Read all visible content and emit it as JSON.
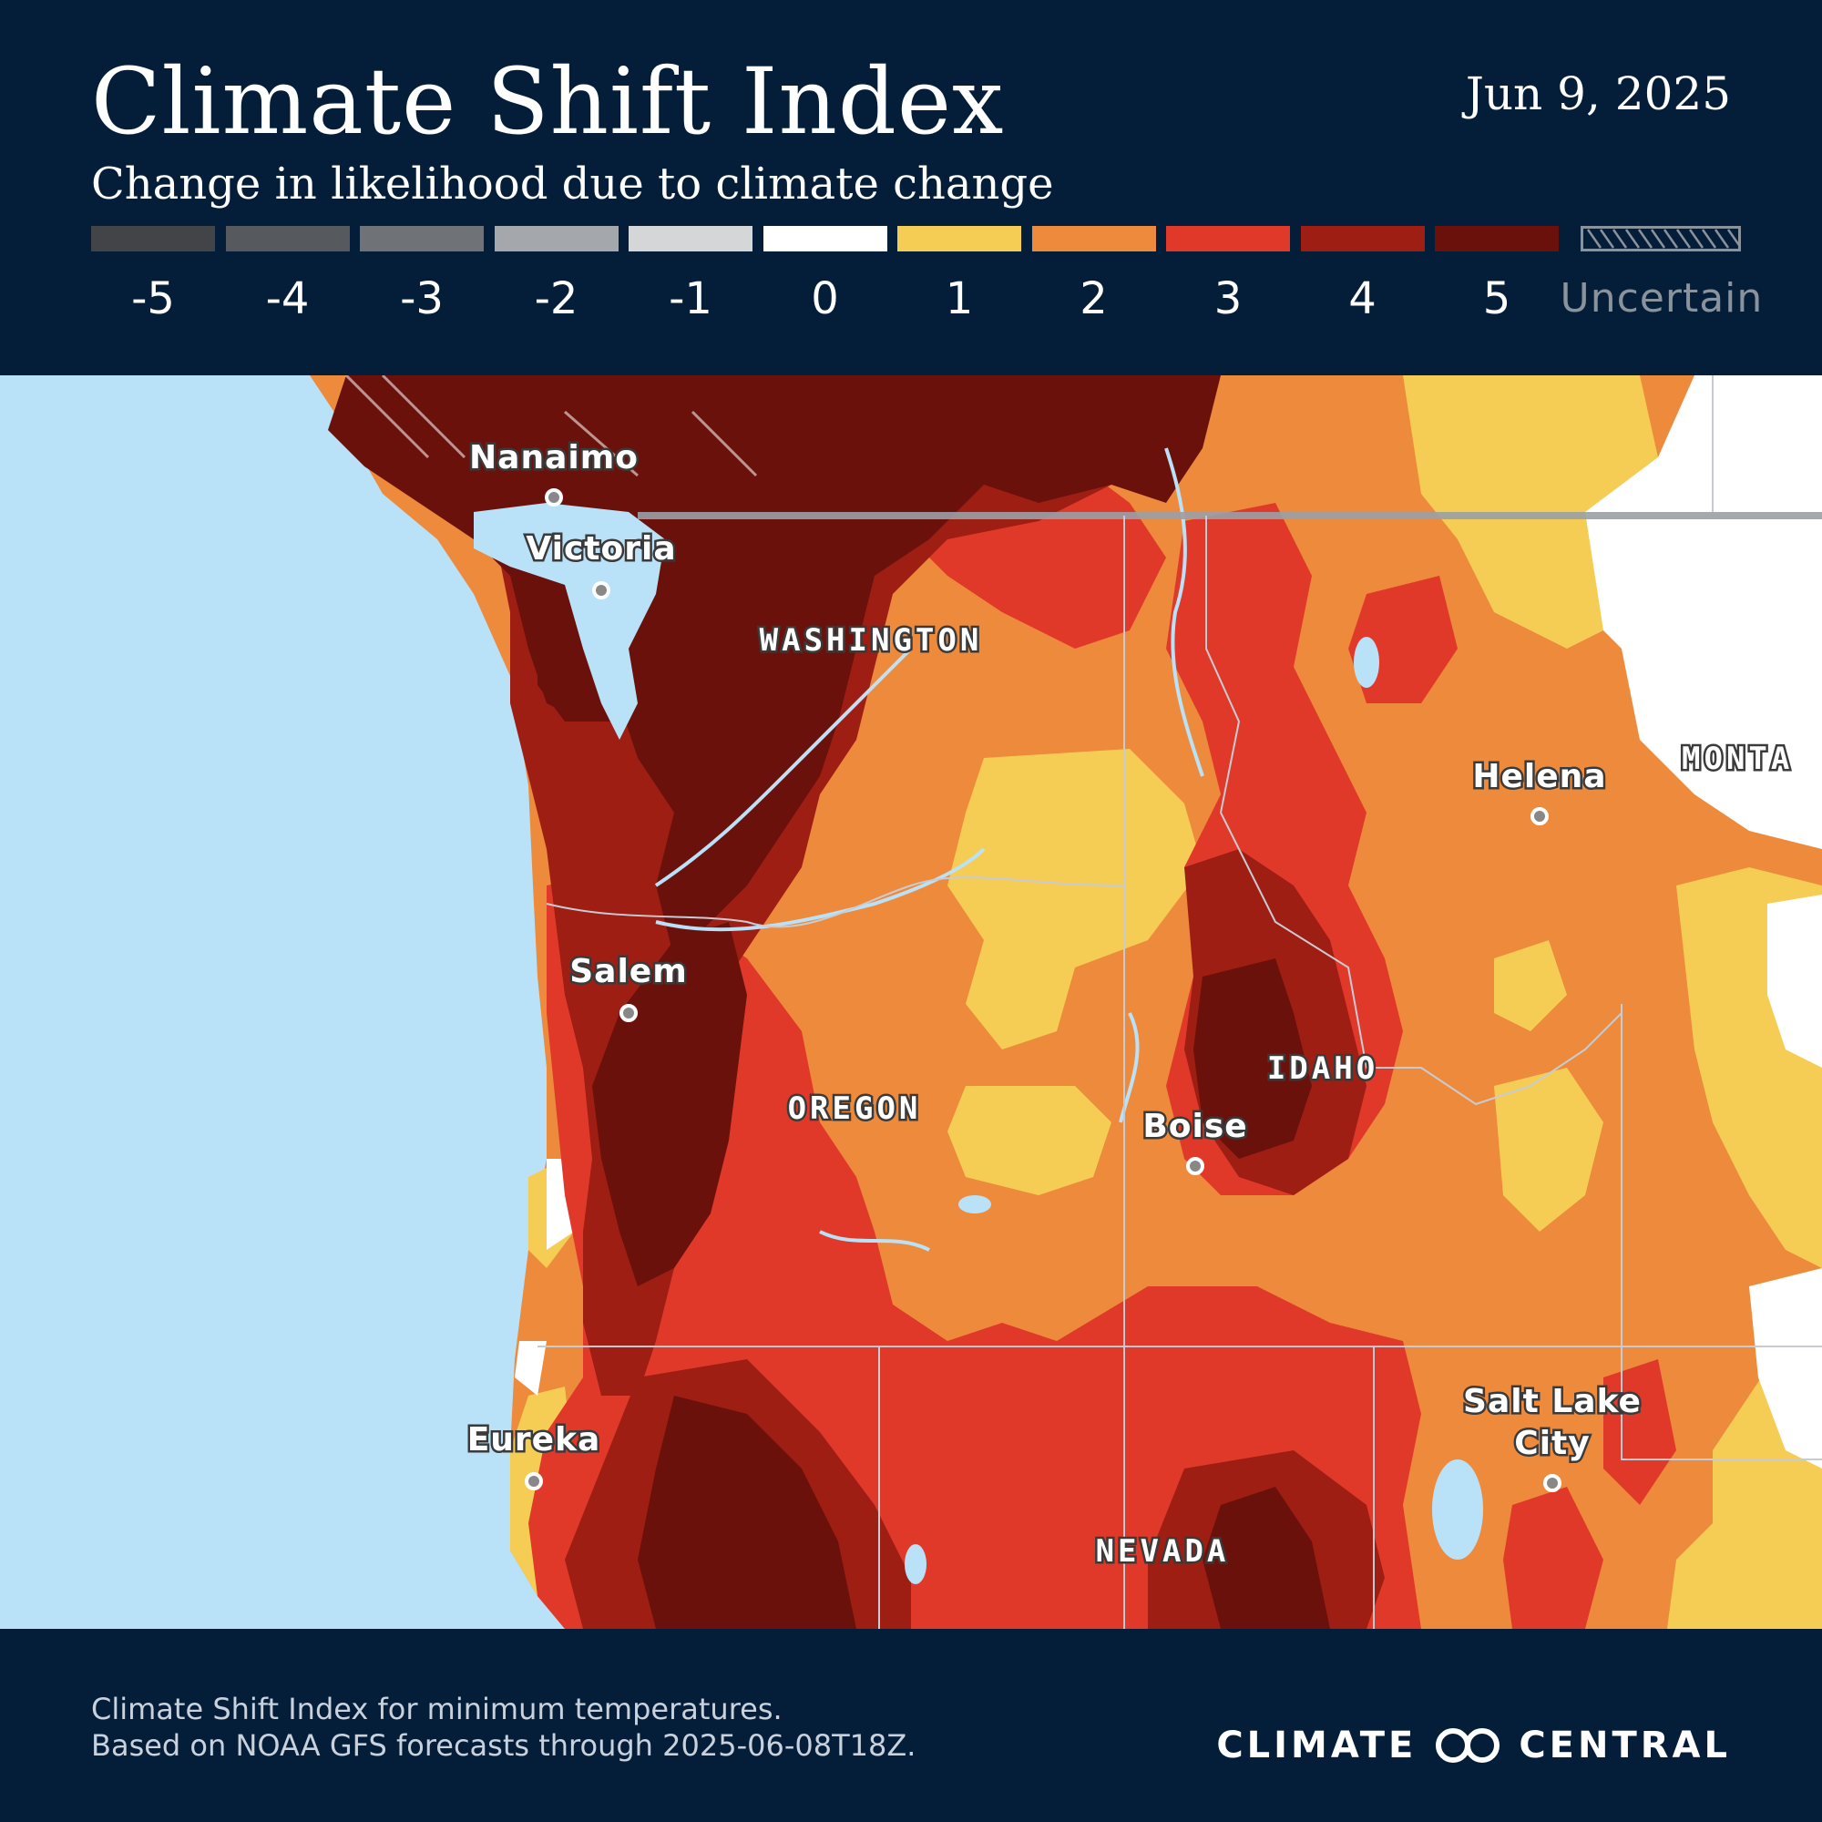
{
  "header": {
    "title": "Climate Shift Index",
    "subtitle": "Change in likelihood due to climate change",
    "date": "Jun 9, 2025"
  },
  "legend": {
    "items": [
      {
        "label": "-5",
        "color": "#424447"
      },
      {
        "label": "-4",
        "color": "#56595d"
      },
      {
        "label": "-3",
        "color": "#6f7378"
      },
      {
        "label": "-2",
        "color": "#a4a8ad"
      },
      {
        "label": "-1",
        "color": "#d4d6d8"
      },
      {
        "label": "0",
        "color": "#ffffff"
      },
      {
        "label": "1",
        "color": "#f5cd55"
      },
      {
        "label": "2",
        "color": "#ee8a3c"
      },
      {
        "label": "3",
        "color": "#e0392a"
      },
      {
        "label": "4",
        "color": "#9e1e14"
      },
      {
        "label": "5",
        "color": "#6b110b"
      }
    ],
    "uncertain_label": "Uncertain"
  },
  "map": {
    "cities": [
      "Nanaimo",
      "Victoria",
      "Salem",
      "Eureka",
      "Helena",
      "Boise",
      "Salt Lake City"
    ],
    "city_lines": {
      "salt_lake_1": "Salt Lake",
      "salt_lake_2": "City"
    },
    "states": [
      "WASHINGTON",
      "OREGON",
      "IDAHO",
      "NEVADA",
      "MONTA"
    ],
    "colors": {
      "ocean": "#b9e2f9",
      "border": "#c8ccd2",
      "intl_border": "#9aa0a6"
    }
  },
  "footer": {
    "line1": "Climate Shift Index for minimum temperatures.",
    "line2": "Based on NOAA GFS forecasts through 2025-06-08T18Z."
  },
  "brand": {
    "left": "CLIMATE",
    "right": "CENTRAL",
    "logo_icon": "linked-circles-icon"
  }
}
